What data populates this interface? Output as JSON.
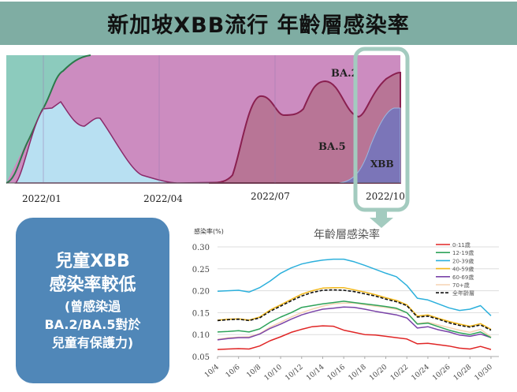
{
  "title": "新加坡XBB流行 年齡層感染率",
  "variant_chart": {
    "type": "area",
    "stacked_percent": true,
    "x_tick_labels": [
      "2022/01",
      "2022/04",
      "2022/07",
      "2022/10"
    ],
    "area_labels": [
      "BA.2",
      "BA.5",
      "XBB"
    ],
    "colors": {
      "early": "#8ccbbd",
      "ba1": "#b8e0f2",
      "ba2": "#cc8cc0",
      "ba5": "#b87596",
      "xbb": "#7b75b8",
      "highlight": "#a3cbbf"
    }
  },
  "callout": {
    "line1": "兒童XBB",
    "line2": "感染率較低",
    "line3": "(曾感染過",
    "line4": "BA.2/BA.5對於",
    "line5": "兒童有保護力)"
  },
  "chart_data": {
    "type": "line",
    "title": "年齡層感染率",
    "ylabel": "感染率(%)",
    "xlabel": "",
    "ylim": [
      0.05,
      0.3
    ],
    "y_ticks": [
      "0.30",
      "0.25",
      "0.20",
      "0.15",
      "0.10",
      "0.05"
    ],
    "x": [
      "10/4",
      "10/5",
      "10/6",
      "10/7",
      "10/8",
      "10/9",
      "10/10",
      "10/11",
      "10/12",
      "10/13",
      "10/14",
      "10/15",
      "10/16",
      "10/17",
      "10/18",
      "10/19",
      "10/20",
      "10/21",
      "10/22",
      "10/23",
      "10/24",
      "10/25",
      "10/26",
      "10/27",
      "10/28",
      "10/29",
      "10/30"
    ],
    "x_tick_labels": [
      "10/4",
      "10/6",
      "10/8",
      "10/10",
      "10/12",
      "10/14",
      "10/16",
      "10/18",
      "10/20",
      "10/22",
      "10/24",
      "10/26",
      "10/28",
      "10/30"
    ],
    "grid": true,
    "legend": "top-right",
    "series": [
      {
        "name": "0-11歲",
        "color": "#e02525",
        "dash": false,
        "values": [
          0.066,
          0.067,
          0.068,
          0.067,
          0.074,
          0.086,
          0.095,
          0.105,
          0.112,
          0.118,
          0.12,
          0.119,
          0.11,
          0.105,
          0.1,
          0.099,
          0.096,
          0.093,
          0.09,
          0.079,
          0.08,
          0.077,
          0.074,
          0.069,
          0.067,
          0.073,
          0.066
        ]
      },
      {
        "name": "12-19歲",
        "color": "#2ea35a",
        "dash": false,
        "values": [
          0.106,
          0.107,
          0.109,
          0.106,
          0.113,
          0.128,
          0.14,
          0.15,
          0.162,
          0.166,
          0.17,
          0.173,
          0.176,
          0.173,
          0.17,
          0.167,
          0.164,
          0.16,
          0.15,
          0.124,
          0.126,
          0.118,
          0.11,
          0.104,
          0.1,
          0.106,
          0.093
        ]
      },
      {
        "name": "20-39歲",
        "color": "#2cb0dc",
        "dash": false,
        "values": [
          0.199,
          0.2,
          0.201,
          0.197,
          0.207,
          0.222,
          0.24,
          0.252,
          0.261,
          0.266,
          0.27,
          0.272,
          0.272,
          0.266,
          0.258,
          0.249,
          0.24,
          0.232,
          0.212,
          0.183,
          0.179,
          0.17,
          0.161,
          0.155,
          0.158,
          0.166,
          0.143
        ]
      },
      {
        "name": "40-59歲",
        "color": "#f2b81c",
        "dash": false,
        "values": [
          0.133,
          0.135,
          0.136,
          0.133,
          0.14,
          0.156,
          0.168,
          0.18,
          0.192,
          0.2,
          0.206,
          0.207,
          0.207,
          0.202,
          0.197,
          0.191,
          0.184,
          0.178,
          0.168,
          0.142,
          0.145,
          0.137,
          0.13,
          0.124,
          0.119,
          0.125,
          0.112
        ]
      },
      {
        "name": "60-69歲",
        "color": "#7a43a8",
        "dash": false,
        "values": [
          0.088,
          0.091,
          0.093,
          0.093,
          0.101,
          0.114,
          0.124,
          0.135,
          0.145,
          0.152,
          0.158,
          0.16,
          0.163,
          0.162,
          0.158,
          0.153,
          0.149,
          0.145,
          0.138,
          0.115,
          0.118,
          0.111,
          0.106,
          0.099,
          0.096,
          0.101,
          0.093
        ]
      },
      {
        "name": "70+歲",
        "color": "#f5d3b3",
        "dash": false,
        "values": [
          0.089,
          0.093,
          0.094,
          0.095,
          0.102,
          0.117,
          0.128,
          0.14,
          0.15,
          0.158,
          0.165,
          0.17,
          0.172,
          0.172,
          0.168,
          0.165,
          0.162,
          0.158,
          0.15,
          0.125,
          0.128,
          0.122,
          0.116,
          0.11,
          0.105,
          0.112,
          0.095
        ]
      },
      {
        "name": "全年齡層",
        "color": "#111111",
        "dash": true,
        "values": [
          0.132,
          0.134,
          0.135,
          0.132,
          0.138,
          0.153,
          0.165,
          0.177,
          0.188,
          0.196,
          0.201,
          0.202,
          0.201,
          0.198,
          0.193,
          0.188,
          0.181,
          0.175,
          0.166,
          0.14,
          0.142,
          0.135,
          0.127,
          0.121,
          0.117,
          0.122,
          0.11
        ]
      }
    ]
  }
}
